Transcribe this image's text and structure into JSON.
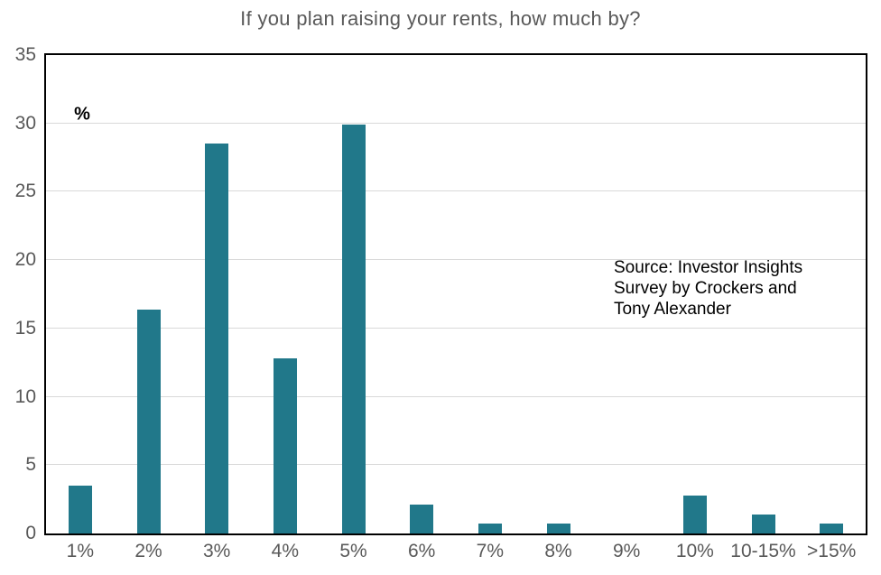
{
  "chart_data": {
    "type": "bar",
    "title": "If you plan raising your rents, how much by?",
    "unit_label": "%",
    "categories": [
      "1%",
      "2%",
      "3%",
      "4%",
      "5%",
      "6%",
      "7%",
      "8%",
      "9%",
      "10%",
      "10-15%",
      ">15%"
    ],
    "values": [
      3.5,
      16.4,
      28.5,
      12.8,
      29.9,
      2.1,
      0.7,
      0.7,
      0,
      2.8,
      1.4,
      0.7
    ],
    "xlabel": "",
    "ylabel": "%",
    "ylim": [
      0,
      35
    ],
    "yticks": [
      0,
      5,
      10,
      15,
      20,
      25,
      30,
      35
    ],
    "grid": "horizontal",
    "legend": "none",
    "annotation": {
      "lines": [
        "Source: Investor Insights",
        "Survey by Crockers and",
        "Tony Alexander"
      ]
    },
    "colors": {
      "bar": "#21788A",
      "axis_text": "#595959",
      "title_text": "#595959",
      "gridline": "#D9D9D9",
      "plot_border": "#000000",
      "annotation_text": "#000000",
      "unit_text": "#000000"
    }
  }
}
